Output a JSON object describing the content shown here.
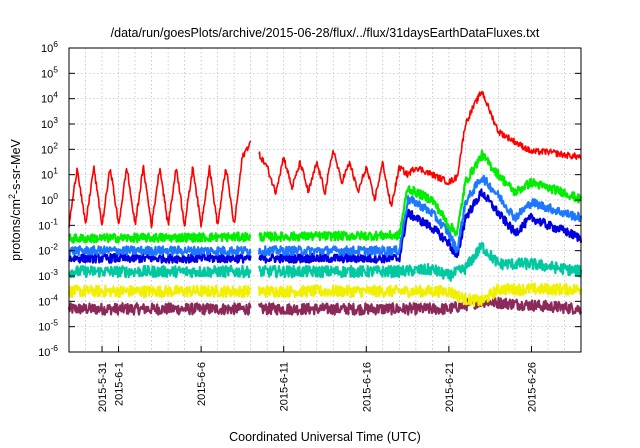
{
  "chart_data": {
    "type": "line",
    "title": "/data/run/goesPlots/archive/2015-06-28/flux/../flux/31daysEarthDataFluxes.txt",
    "xlabel": "Coordinated Universal Time (UTC)",
    "ylabel": {
      "prefix": "protons/cm",
      "sup": "2",
      "suffix": "-s-sr-MeV"
    },
    "x_range_days": [
      "2015-05-29",
      "2015-06-29"
    ],
    "y_scale": "log",
    "ylim": [
      1e-06,
      1000000.0
    ],
    "grid": true,
    "y_ticks": [
      {
        "exp": -6,
        "base": "10",
        "sup": "-6"
      },
      {
        "exp": -5,
        "base": "10",
        "sup": "-5"
      },
      {
        "exp": -4,
        "base": "10",
        "sup": "-4"
      },
      {
        "exp": -3,
        "base": "10",
        "sup": "-3"
      },
      {
        "exp": -2,
        "base": "10",
        "sup": "-2"
      },
      {
        "exp": -1,
        "base": "10",
        "sup": "-1"
      },
      {
        "exp": 0,
        "base": "10",
        "sup": "0"
      },
      {
        "exp": 1,
        "base": "10",
        "sup": "1"
      },
      {
        "exp": 2,
        "base": "10",
        "sup": "2"
      },
      {
        "exp": 3,
        "base": "10",
        "sup": "3"
      },
      {
        "exp": 4,
        "base": "10",
        "sup": "4"
      },
      {
        "exp": 5,
        "base": "10",
        "sup": "5"
      },
      {
        "exp": 6,
        "base": "10",
        "sup": "6"
      }
    ],
    "x_ticks": [
      {
        "date": "2015-05-31",
        "label": "2015-5-31"
      },
      {
        "date": "2015-06-01",
        "label": "2015-6-1"
      },
      {
        "date": "2015-06-06",
        "label": "2015-6-6"
      },
      {
        "date": "2015-06-11",
        "label": "2015-6-11"
      },
      {
        "date": "2015-06-16",
        "label": "2015-6-16"
      },
      {
        "date": "2015-06-21",
        "label": "2015-6-21"
      },
      {
        "date": "2015-06-26",
        "label": "2015-6-26"
      }
    ],
    "data_gap": [
      "2015-06-09",
      "2015-06-09T12:00"
    ],
    "series": [
      {
        "color": "#8b2a5a",
        "points": [
          [
            "2015-05-29",
            5e-05
          ],
          [
            "2015-06-21",
            5e-05
          ],
          [
            "2015-06-23",
            0.0001
          ],
          [
            "2015-06-29",
            5e-05
          ]
        ]
      },
      {
        "color": "#f0f000",
        "points": [
          [
            "2015-05-29",
            0.00025
          ],
          [
            "2015-06-21",
            0.00025
          ],
          [
            "2015-06-22",
            0.00012
          ],
          [
            "2015-06-23",
            0.0001
          ],
          [
            "2015-06-24",
            0.0003
          ],
          [
            "2015-06-29",
            0.0003
          ]
        ]
      },
      {
        "color": "#00c8a0",
        "points": [
          [
            "2015-05-29",
            0.0015
          ],
          [
            "2015-06-18",
            0.0015
          ],
          [
            "2015-06-20",
            0.0018
          ],
          [
            "2015-06-21",
            0.001
          ],
          [
            "2015-06-22",
            0.002
          ],
          [
            "2015-06-23",
            0.015
          ],
          [
            "2015-06-24",
            0.003
          ],
          [
            "2015-06-26",
            0.003
          ],
          [
            "2015-06-29",
            0.0015
          ]
        ]
      },
      {
        "color": "#0000e0",
        "points": [
          [
            "2015-05-29",
            0.005
          ],
          [
            "2015-06-18",
            0.005
          ],
          [
            "2015-06-18T12:00",
            0.3
          ],
          [
            "2015-06-19",
            0.2
          ],
          [
            "2015-06-20",
            0.08
          ],
          [
            "2015-06-21",
            0.02
          ],
          [
            "2015-06-21T12:00",
            0.005
          ],
          [
            "2015-06-22",
            0.2
          ],
          [
            "2015-06-23",
            2
          ],
          [
            "2015-06-24",
            0.3
          ],
          [
            "2015-06-25",
            0.05
          ],
          [
            "2015-06-26",
            0.2
          ],
          [
            "2015-06-27",
            0.1
          ],
          [
            "2015-06-28",
            0.06
          ],
          [
            "2015-06-29",
            0.03
          ]
        ]
      },
      {
        "color": "#1e78ff",
        "points": [
          [
            "2015-05-29",
            0.01
          ],
          [
            "2015-06-18",
            0.01
          ],
          [
            "2015-06-18T12:00",
            1
          ],
          [
            "2015-06-19",
            0.8
          ],
          [
            "2015-06-20",
            0.3
          ],
          [
            "2015-06-21",
            0.05
          ],
          [
            "2015-06-21T12:00",
            0.01
          ],
          [
            "2015-06-22",
            0.8
          ],
          [
            "2015-06-23",
            8
          ],
          [
            "2015-06-24",
            1.5
          ],
          [
            "2015-06-25",
            0.2
          ],
          [
            "2015-06-26",
            0.8
          ],
          [
            "2015-06-27",
            0.5
          ],
          [
            "2015-06-28",
            0.3
          ],
          [
            "2015-06-29",
            0.2
          ]
        ]
      },
      {
        "color": "#00ee00",
        "points": [
          [
            "2015-05-29",
            0.03
          ],
          [
            "2015-06-18",
            0.04
          ],
          [
            "2015-06-18T12:00",
            3
          ],
          [
            "2015-06-19",
            2
          ],
          [
            "2015-06-20",
            1
          ],
          [
            "2015-06-21",
            0.1
          ],
          [
            "2015-06-21T12:00",
            0.05
          ],
          [
            "2015-06-22",
            5
          ],
          [
            "2015-06-23",
            60
          ],
          [
            "2015-06-24",
            10
          ],
          [
            "2015-06-25",
            2
          ],
          [
            "2015-06-26",
            5
          ],
          [
            "2015-06-27",
            3
          ],
          [
            "2015-06-28",
            2
          ],
          [
            "2015-06-29",
            1
          ]
        ]
      },
      {
        "color": "#ff0000",
        "points": [
          [
            "2015-05-29",
            0.1
          ],
          [
            "2015-05-29T12:00",
            20
          ],
          [
            "2015-05-30",
            0.1
          ],
          [
            "2015-05-30T12:00",
            20
          ],
          [
            "2015-05-31",
            0.1
          ],
          [
            "2015-05-31T12:00",
            20
          ],
          [
            "2015-06-01",
            0.1
          ],
          [
            "2015-06-01T12:00",
            20
          ],
          [
            "2015-06-02",
            0.1
          ],
          [
            "2015-06-02T12:00",
            20
          ],
          [
            "2015-06-03",
            0.1
          ],
          [
            "2015-06-03T12:00",
            20
          ],
          [
            "2015-06-04",
            0.1
          ],
          [
            "2015-06-04T12:00",
            20
          ],
          [
            "2015-06-05",
            0.1
          ],
          [
            "2015-06-05T12:00",
            20
          ],
          [
            "2015-06-06",
            0.1
          ],
          [
            "2015-06-06T12:00",
            20
          ],
          [
            "2015-06-07",
            0.1
          ],
          [
            "2015-06-07T12:00",
            20
          ],
          [
            "2015-06-08",
            0.1
          ],
          [
            "2015-06-08T12:00",
            50
          ],
          [
            "2015-06-09",
            200
          ],
          [
            "2015-06-10",
            20
          ],
          [
            "2015-06-10T12:00",
            2
          ],
          [
            "2015-06-11",
            50
          ],
          [
            "2015-06-11T12:00",
            3
          ],
          [
            "2015-06-12",
            30
          ],
          [
            "2015-06-12T12:00",
            2
          ],
          [
            "2015-06-13",
            30
          ],
          [
            "2015-06-13T12:00",
            2
          ],
          [
            "2015-06-14",
            100
          ],
          [
            "2015-06-14T12:00",
            5
          ],
          [
            "2015-06-15",
            30
          ],
          [
            "2015-06-15T12:00",
            2
          ],
          [
            "2015-06-16",
            20
          ],
          [
            "2015-06-16T12:00",
            1
          ],
          [
            "2015-06-17",
            30
          ],
          [
            "2015-06-17T12:00",
            0.5
          ],
          [
            "2015-06-18",
            20
          ],
          [
            "2015-06-18T12:00",
            10
          ],
          [
            "2015-06-19",
            20
          ],
          [
            "2015-06-20",
            10
          ],
          [
            "2015-06-21",
            5
          ],
          [
            "2015-06-21T12:00",
            8
          ],
          [
            "2015-06-22",
            1000
          ],
          [
            "2015-06-22T12:00",
            5000
          ],
          [
            "2015-06-23",
            20000
          ],
          [
            "2015-06-23T12:00",
            3000
          ],
          [
            "2015-06-24",
            500
          ],
          [
            "2015-06-25",
            200
          ],
          [
            "2015-06-26",
            80
          ],
          [
            "2015-06-27",
            80
          ],
          [
            "2015-06-28",
            60
          ],
          [
            "2015-06-29",
            50
          ]
        ]
      }
    ]
  }
}
